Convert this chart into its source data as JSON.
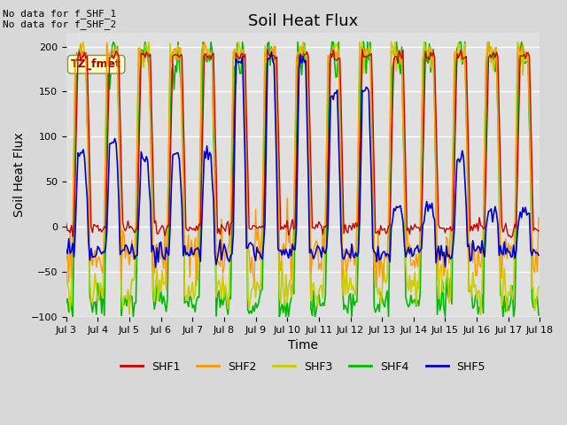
{
  "title": "Soil Heat Flux",
  "ylabel": "Soil Heat Flux",
  "xlabel": "Time",
  "ylim": [
    -100,
    215
  ],
  "annotation_text": "No data for f_SHF_1\nNo data for f_SHF_2",
  "tz_label": "TZ_fmet",
  "xtick_labels": [
    "Jul 3",
    "Jul 4",
    "Jul 5",
    "Jul 6",
    "Jul 7",
    "Jul 8",
    "Jul 9",
    "Jul 10",
    "Jul 11",
    "Jul 12",
    "Jul 13",
    "Jul 14",
    "Jul 15",
    "Jul 16",
    "Jul 17",
    "Jul 18"
  ],
  "colors": {
    "SHF1": "#cc0000",
    "SHF2": "#ff9900",
    "SHF3": "#cccc00",
    "SHF4": "#00bb00",
    "SHF5": "#0000cc"
  },
  "background_color": "#e8e8e8",
  "grid_color": "#ffffff",
  "title_fontsize": 13,
  "axis_fontsize": 10,
  "tick_fontsize": 8
}
